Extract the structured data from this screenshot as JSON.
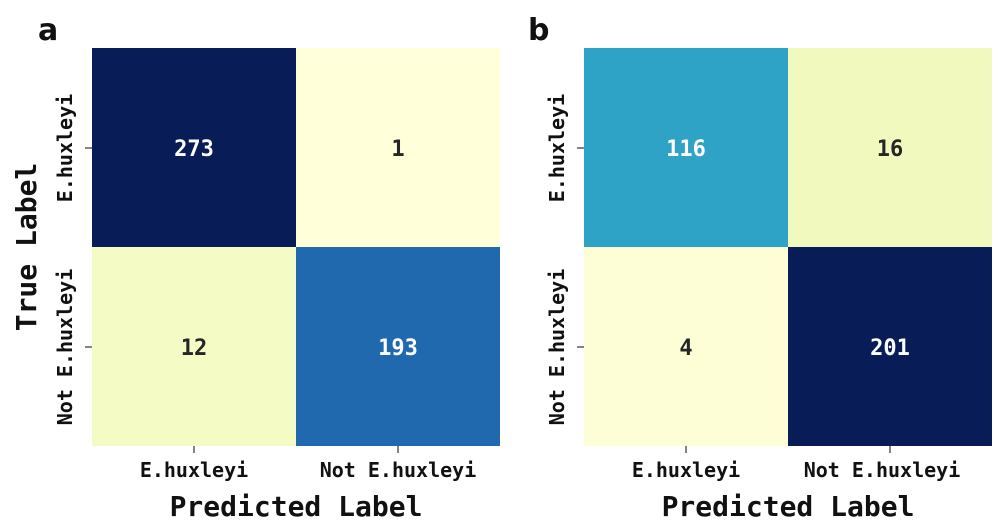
{
  "chart_data": [
    {
      "type": "heatmap",
      "panel": "a",
      "xlabel": "Predicted Label",
      "ylabel": "True Label",
      "x_categories": [
        "E.huxleyi",
        "Not E.huxleyi"
      ],
      "y_categories": [
        "E.huxleyi",
        "Not E.huxleyi"
      ],
      "values": [
        [
          273,
          1
        ],
        [
          12,
          193
        ]
      ],
      "cell_colors": [
        [
          "#081d58",
          "#ffffd9"
        ],
        [
          "#f4fbc4",
          "#2069ae"
        ]
      ],
      "text_colors": [
        [
          "#ffffff",
          "#262626"
        ],
        [
          "#262626",
          "#ffffff"
        ]
      ]
    },
    {
      "type": "heatmap",
      "panel": "b",
      "xlabel": "Predicted Label",
      "ylabel": "",
      "x_categories": [
        "E.huxleyi",
        "Not E.huxleyi"
      ],
      "y_categories": [
        "E.huxleyi",
        "Not E.huxleyi"
      ],
      "values": [
        [
          116,
          16
        ],
        [
          4,
          201
        ]
      ],
      "cell_colors": [
        [
          "#2ea3c6",
          "#f2f9bf"
        ],
        [
          "#fdfed5",
          "#081d58"
        ]
      ],
      "text_colors": [
        [
          "#ffffff",
          "#262626"
        ],
        [
          "#262626",
          "#ffffff"
        ]
      ]
    }
  ]
}
